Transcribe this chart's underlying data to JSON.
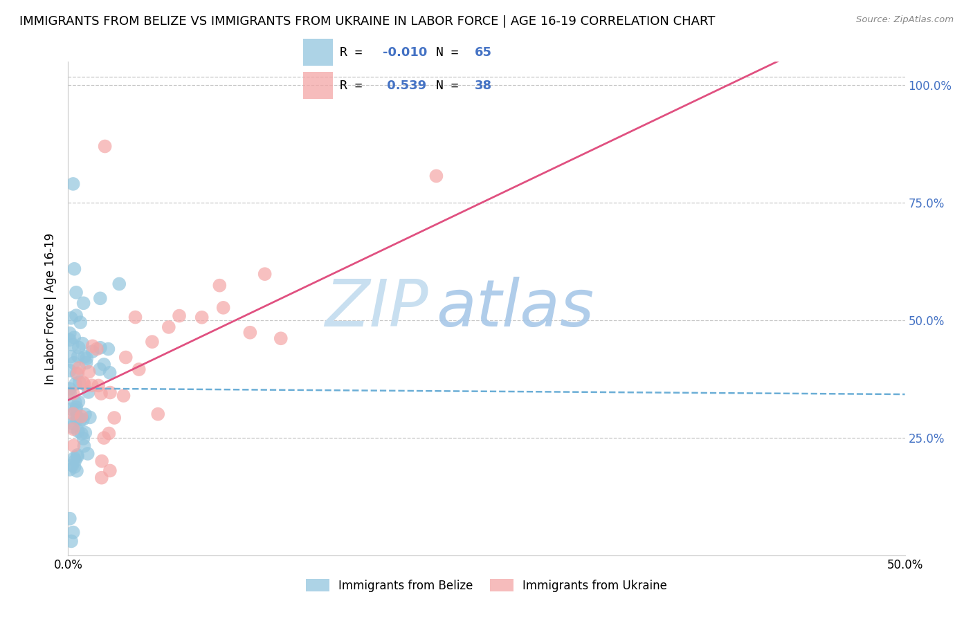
{
  "title": "IMMIGRANTS FROM BELIZE VS IMMIGRANTS FROM UKRAINE IN LABOR FORCE | AGE 16-19 CORRELATION CHART",
  "source": "Source: ZipAtlas.com",
  "ylabel": "In Labor Force | Age 16-19",
  "xlabel_belize": "Immigrants from Belize",
  "xlabel_ukraine": "Immigrants from Ukraine",
  "xmin": 0.0,
  "xmax": 0.5,
  "ymin": 0.0,
  "ymax": 1.05,
  "yticks": [
    0.25,
    0.5,
    0.75,
    1.0
  ],
  "ytick_labels": [
    "25.0%",
    "50.0%",
    "75.0%",
    "100.0%"
  ],
  "xtick_positions": [
    0.0,
    0.5
  ],
  "xtick_labels": [
    "0.0%",
    "50.0%"
  ],
  "belize_color": "#92c5de",
  "ukraine_color": "#f4a6a6",
  "belize_line_color": "#6baed6",
  "ukraine_line_color": "#e05080",
  "belize_R": -0.01,
  "belize_N": 65,
  "ukraine_R": 0.539,
  "ukraine_N": 38,
  "title_fontsize": 13,
  "axis_label_fontsize": 12,
  "tick_fontsize": 12,
  "legend_fontsize": 13,
  "background_color": "#ffffff",
  "grid_color": "#c8c8c8",
  "right_tick_color": "#4472c4",
  "watermark_zip_color": "#c8dff0",
  "watermark_atlas_color": "#a8c8e8",
  "belize_reg_intercept": 0.355,
  "belize_reg_slope": -0.025,
  "ukraine_reg_intercept": 0.33,
  "ukraine_reg_slope": 1.7
}
